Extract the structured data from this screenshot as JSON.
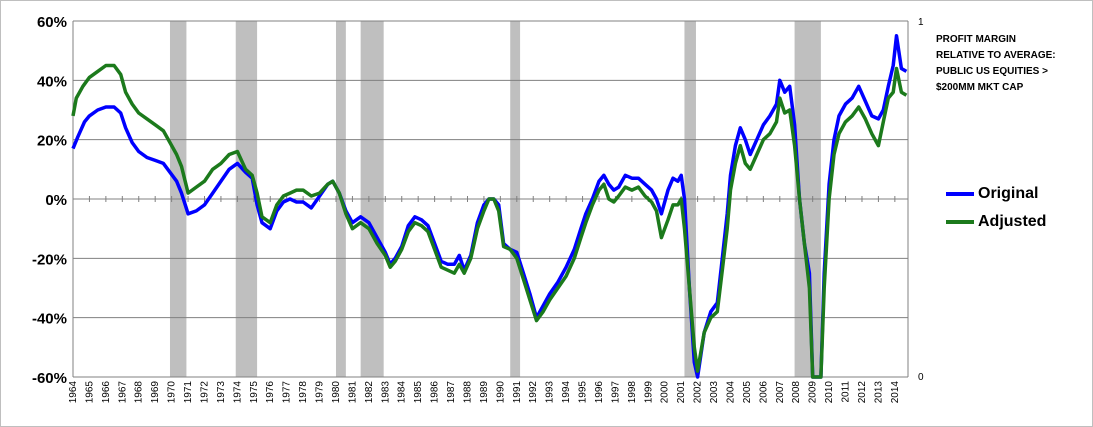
{
  "annotation": [
    "PROFIT MARGIN",
    "RELATIVE TO AVERAGE:",
    "PUBLIC US EQUITIES >",
    "$200MM MKT CAP"
  ],
  "chart_data": {
    "type": "line",
    "title": "",
    "xlabel": "",
    "ylabel": "",
    "xlim": [
      1964,
      2014.8
    ],
    "ylim": [
      -60,
      60
    ],
    "y_unit": "%",
    "y_ticks": [
      "60%",
      "40%",
      "20%",
      "0%",
      "-20%",
      "-40%",
      "-60%"
    ],
    "y2_ticks": [
      "1",
      "0"
    ],
    "x_ticks": [
      "1964",
      "1965",
      "1966",
      "1967",
      "1968",
      "1969",
      "1970",
      "1971",
      "1972",
      "1973",
      "1974",
      "1975",
      "1976",
      "1977",
      "1978",
      "1979",
      "1980",
      "1981",
      "1982",
      "1983",
      "1984",
      "1985",
      "1986",
      "1987",
      "1988",
      "1989",
      "1990",
      "1991",
      "1992",
      "1993",
      "1994",
      "1995",
      "1996",
      "1997",
      "1998",
      "1999",
      "2000",
      "2001",
      "2002",
      "2003",
      "2004",
      "2005",
      "2006",
      "2007",
      "2008",
      "2009",
      "2010",
      "2011",
      "2012",
      "2013",
      "2014"
    ],
    "grid": true,
    "legend_position": "right",
    "recessions": [
      [
        1969.9,
        1970.9
      ],
      [
        1973.9,
        1975.2
      ],
      [
        1980.0,
        1980.6
      ],
      [
        1981.5,
        1982.9
      ],
      [
        1990.6,
        1991.2
      ],
      [
        2001.2,
        2001.9
      ],
      [
        2007.9,
        2009.5
      ]
    ],
    "series": [
      {
        "name": "Original",
        "color": "#0000ff",
        "points": [
          [
            1964.0,
            17
          ],
          [
            1964.3,
            21
          ],
          [
            1964.7,
            26
          ],
          [
            1965.0,
            28
          ],
          [
            1965.5,
            30
          ],
          [
            1966.0,
            31
          ],
          [
            1966.5,
            31
          ],
          [
            1966.9,
            29
          ],
          [
            1967.2,
            24
          ],
          [
            1967.6,
            19
          ],
          [
            1968.0,
            16
          ],
          [
            1968.5,
            14
          ],
          [
            1969.0,
            13
          ],
          [
            1969.5,
            12
          ],
          [
            1969.9,
            9
          ],
          [
            1970.3,
            6
          ],
          [
            1970.6,
            2
          ],
          [
            1971.0,
            -5
          ],
          [
            1971.5,
            -4
          ],
          [
            1972.0,
            -2
          ],
          [
            1972.5,
            2
          ],
          [
            1973.0,
            6
          ],
          [
            1973.5,
            10
          ],
          [
            1974.0,
            12
          ],
          [
            1974.5,
            9
          ],
          [
            1974.9,
            7
          ],
          [
            1975.2,
            -2
          ],
          [
            1975.5,
            -8
          ],
          [
            1976.0,
            -10
          ],
          [
            1976.4,
            -4
          ],
          [
            1976.8,
            -1
          ],
          [
            1977.2,
            0
          ],
          [
            1977.6,
            -1
          ],
          [
            1978.0,
            -1
          ],
          [
            1978.5,
            -3
          ],
          [
            1979.0,
            1
          ],
          [
            1979.5,
            5
          ],
          [
            1979.8,
            6
          ],
          [
            1980.2,
            2
          ],
          [
            1980.6,
            -4
          ],
          [
            1981.0,
            -8
          ],
          [
            1981.5,
            -6
          ],
          [
            1982.0,
            -8
          ],
          [
            1982.5,
            -13
          ],
          [
            1983.0,
            -18
          ],
          [
            1983.3,
            -22
          ],
          [
            1983.6,
            -20
          ],
          [
            1984.0,
            -16
          ],
          [
            1984.4,
            -9
          ],
          [
            1984.8,
            -6
          ],
          [
            1985.2,
            -7
          ],
          [
            1985.6,
            -9
          ],
          [
            1986.0,
            -15
          ],
          [
            1986.4,
            -21
          ],
          [
            1986.8,
            -22
          ],
          [
            1987.2,
            -22
          ],
          [
            1987.5,
            -19
          ],
          [
            1987.8,
            -24
          ],
          [
            1988.2,
            -19
          ],
          [
            1988.6,
            -8
          ],
          [
            1989.0,
            -2
          ],
          [
            1989.3,
            0
          ],
          [
            1989.6,
            0
          ],
          [
            1989.9,
            -2
          ],
          [
            1990.2,
            -15
          ],
          [
            1990.6,
            -17
          ],
          [
            1991.0,
            -18
          ],
          [
            1991.4,
            -25
          ],
          [
            1991.8,
            -32
          ],
          [
            1992.2,
            -40
          ],
          [
            1992.6,
            -36
          ],
          [
            1993.0,
            -32
          ],
          [
            1993.5,
            -28
          ],
          [
            1994.0,
            -23
          ],
          [
            1994.5,
            -17
          ],
          [
            1994.9,
            -10
          ],
          [
            1995.2,
            -5
          ],
          [
            1995.6,
            0
          ],
          [
            1996.0,
            6
          ],
          [
            1996.3,
            8
          ],
          [
            1996.6,
            5
          ],
          [
            1996.9,
            3
          ],
          [
            1997.2,
            4
          ],
          [
            1997.6,
            8
          ],
          [
            1998.0,
            7
          ],
          [
            1998.4,
            7
          ],
          [
            1998.8,
            5
          ],
          [
            1999.2,
            3
          ],
          [
            1999.5,
            0
          ],
          [
            1999.8,
            -5
          ],
          [
            2000.2,
            3
          ],
          [
            2000.5,
            7
          ],
          [
            2000.8,
            6
          ],
          [
            2001.0,
            8
          ],
          [
            2001.2,
            0
          ],
          [
            2001.5,
            -30
          ],
          [
            2001.8,
            -55
          ],
          [
            2002.0,
            -60
          ],
          [
            2002.4,
            -45
          ],
          [
            2002.8,
            -38
          ],
          [
            2003.2,
            -35
          ],
          [
            2003.5,
            -20
          ],
          [
            2003.8,
            -5
          ],
          [
            2004.0,
            8
          ],
          [
            2004.3,
            18
          ],
          [
            2004.6,
            24
          ],
          [
            2004.9,
            20
          ],
          [
            2005.2,
            15
          ],
          [
            2005.6,
            20
          ],
          [
            2006.0,
            25
          ],
          [
            2006.4,
            28
          ],
          [
            2006.8,
            32
          ],
          [
            2007.0,
            40
          ],
          [
            2007.3,
            36
          ],
          [
            2007.6,
            38
          ],
          [
            2007.9,
            25
          ],
          [
            2008.2,
            0
          ],
          [
            2008.5,
            -15
          ],
          [
            2008.8,
            -25
          ],
          [
            2009.0,
            -60
          ],
          [
            2009.2,
            -60
          ],
          [
            2009.5,
            -60
          ],
          [
            2009.7,
            -25
          ],
          [
            2010.0,
            5
          ],
          [
            2010.3,
            20
          ],
          [
            2010.6,
            28
          ],
          [
            2011.0,
            32
          ],
          [
            2011.4,
            34
          ],
          [
            2011.8,
            38
          ],
          [
            2012.2,
            33
          ],
          [
            2012.6,
            28
          ],
          [
            2013.0,
            27
          ],
          [
            2013.3,
            30
          ],
          [
            2013.6,
            38
          ],
          [
            2013.9,
            45
          ],
          [
            2014.1,
            55
          ],
          [
            2014.4,
            44
          ],
          [
            2014.7,
            43
          ]
        ]
      },
      {
        "name": "Adjusted",
        "color": "#1c7a1c",
        "points": [
          [
            1964.0,
            28
          ],
          [
            1964.2,
            34
          ],
          [
            1964.6,
            38
          ],
          [
            1965.0,
            41
          ],
          [
            1965.5,
            43
          ],
          [
            1966.0,
            45
          ],
          [
            1966.5,
            45
          ],
          [
            1966.9,
            42
          ],
          [
            1967.2,
            36
          ],
          [
            1967.6,
            32
          ],
          [
            1968.0,
            29
          ],
          [
            1968.5,
            27
          ],
          [
            1969.0,
            25
          ],
          [
            1969.5,
            23
          ],
          [
            1969.9,
            19
          ],
          [
            1970.3,
            15
          ],
          [
            1970.6,
            11
          ],
          [
            1971.0,
            2
          ],
          [
            1971.5,
            4
          ],
          [
            1972.0,
            6
          ],
          [
            1972.5,
            10
          ],
          [
            1973.0,
            12
          ],
          [
            1973.5,
            15
          ],
          [
            1974.0,
            16
          ],
          [
            1974.5,
            10
          ],
          [
            1974.9,
            8
          ],
          [
            1975.2,
            2
          ],
          [
            1975.5,
            -6
          ],
          [
            1976.0,
            -8
          ],
          [
            1976.4,
            -2
          ],
          [
            1976.8,
            1
          ],
          [
            1977.2,
            2
          ],
          [
            1977.6,
            3
          ],
          [
            1978.0,
            3
          ],
          [
            1978.5,
            1
          ],
          [
            1979.0,
            2
          ],
          [
            1979.5,
            5
          ],
          [
            1979.8,
            6
          ],
          [
            1980.2,
            2
          ],
          [
            1980.6,
            -5
          ],
          [
            1981.0,
            -10
          ],
          [
            1981.5,
            -8
          ],
          [
            1982.0,
            -10
          ],
          [
            1982.5,
            -15
          ],
          [
            1983.0,
            -19
          ],
          [
            1983.3,
            -23
          ],
          [
            1983.6,
            -21
          ],
          [
            1984.0,
            -17
          ],
          [
            1984.4,
            -11
          ],
          [
            1984.8,
            -8
          ],
          [
            1985.2,
            -9
          ],
          [
            1985.6,
            -11
          ],
          [
            1986.0,
            -17
          ],
          [
            1986.4,
            -23
          ],
          [
            1986.8,
            -24
          ],
          [
            1987.2,
            -25
          ],
          [
            1987.5,
            -22
          ],
          [
            1987.8,
            -25
          ],
          [
            1988.2,
            -20
          ],
          [
            1988.6,
            -10
          ],
          [
            1989.0,
            -4
          ],
          [
            1989.3,
            0
          ],
          [
            1989.6,
            0
          ],
          [
            1989.9,
            -4
          ],
          [
            1990.2,
            -16
          ],
          [
            1990.6,
            -17
          ],
          [
            1991.0,
            -20
          ],
          [
            1991.4,
            -27
          ],
          [
            1991.8,
            -34
          ],
          [
            1992.2,
            -41
          ],
          [
            1992.6,
            -38
          ],
          [
            1993.0,
            -34
          ],
          [
            1993.5,
            -30
          ],
          [
            1994.0,
            -26
          ],
          [
            1994.5,
            -20
          ],
          [
            1994.9,
            -13
          ],
          [
            1995.2,
            -8
          ],
          [
            1995.6,
            -2
          ],
          [
            1996.0,
            3
          ],
          [
            1996.3,
            5
          ],
          [
            1996.6,
            0
          ],
          [
            1996.9,
            -1
          ],
          [
            1997.2,
            1
          ],
          [
            1997.6,
            4
          ],
          [
            1998.0,
            3
          ],
          [
            1998.4,
            4
          ],
          [
            1998.8,
            1
          ],
          [
            1999.2,
            -1
          ],
          [
            1999.5,
            -4
          ],
          [
            1999.8,
            -13
          ],
          [
            2000.2,
            -7
          ],
          [
            2000.5,
            -2
          ],
          [
            2000.8,
            -2
          ],
          [
            2001.0,
            0
          ],
          [
            2001.2,
            -10
          ],
          [
            2001.5,
            -30
          ],
          [
            2001.8,
            -50
          ],
          [
            2002.0,
            -58
          ],
          [
            2002.4,
            -45
          ],
          [
            2002.8,
            -40
          ],
          [
            2003.2,
            -38
          ],
          [
            2003.5,
            -24
          ],
          [
            2003.8,
            -10
          ],
          [
            2004.0,
            3
          ],
          [
            2004.3,
            12
          ],
          [
            2004.6,
            18
          ],
          [
            2004.9,
            12
          ],
          [
            2005.2,
            10
          ],
          [
            2005.6,
            15
          ],
          [
            2006.0,
            20
          ],
          [
            2006.4,
            22
          ],
          [
            2006.8,
            26
          ],
          [
            2007.0,
            34
          ],
          [
            2007.3,
            29
          ],
          [
            2007.6,
            30
          ],
          [
            2007.9,
            18
          ],
          [
            2008.2,
            0
          ],
          [
            2008.5,
            -15
          ],
          [
            2008.8,
            -30
          ],
          [
            2009.0,
            -60
          ],
          [
            2009.2,
            -60
          ],
          [
            2009.5,
            -60
          ],
          [
            2009.7,
            -30
          ],
          [
            2010.0,
            0
          ],
          [
            2010.3,
            15
          ],
          [
            2010.6,
            22
          ],
          [
            2011.0,
            26
          ],
          [
            2011.4,
            28
          ],
          [
            2011.8,
            31
          ],
          [
            2012.2,
            27
          ],
          [
            2012.6,
            22
          ],
          [
            2013.0,
            18
          ],
          [
            2013.3,
            26
          ],
          [
            2013.6,
            34
          ],
          [
            2013.9,
            36
          ],
          [
            2014.1,
            44
          ],
          [
            2014.4,
            36
          ],
          [
            2014.7,
            35
          ]
        ]
      }
    ]
  }
}
